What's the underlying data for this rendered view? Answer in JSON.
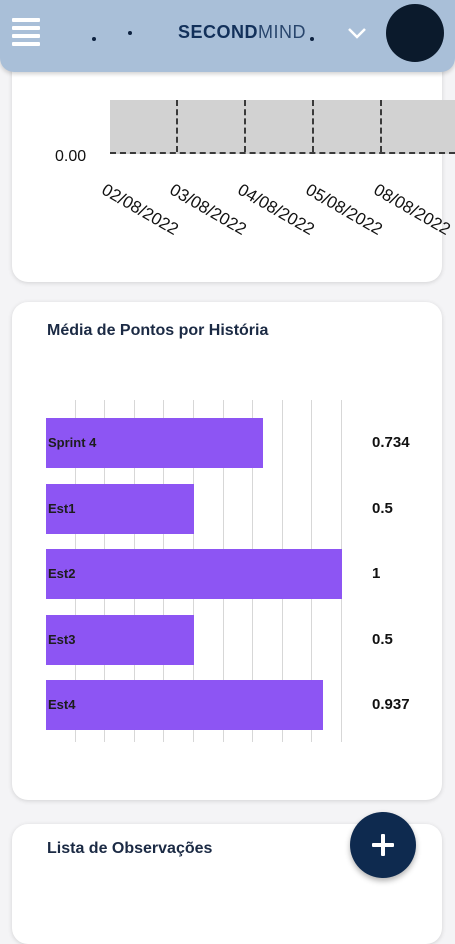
{
  "app": {
    "brand_bold": "SECOND",
    "brand_light": "MIND"
  },
  "line_chart": {
    "y_tick": "0.00",
    "x_ticks": [
      "02/08/2022",
      "03/08/2022",
      "04/08/2022",
      "05/08/2022",
      "08/08/2022"
    ]
  },
  "chart_data": {
    "type": "bar",
    "title": "Média de Pontos por História",
    "categories": [
      "Sprint 4",
      "Est1",
      "Est2",
      "Est3",
      "Est4"
    ],
    "values": [
      0.734,
      0.5,
      1,
      0.5,
      0.937
    ],
    "value_labels": [
      "0.734",
      "0.5",
      "1",
      "0.5",
      "0.937"
    ],
    "xlim": [
      0,
      1
    ],
    "grid": true
  },
  "observations": {
    "title": "Lista de Observações"
  },
  "colors": {
    "appbar": "#a9bfd8",
    "bar": "#8d55f3",
    "fab": "#0e2a4f"
  },
  "icons": {
    "menu": "menu-icon",
    "chevron": "chevron-down-icon",
    "fab": "plus-icon"
  }
}
